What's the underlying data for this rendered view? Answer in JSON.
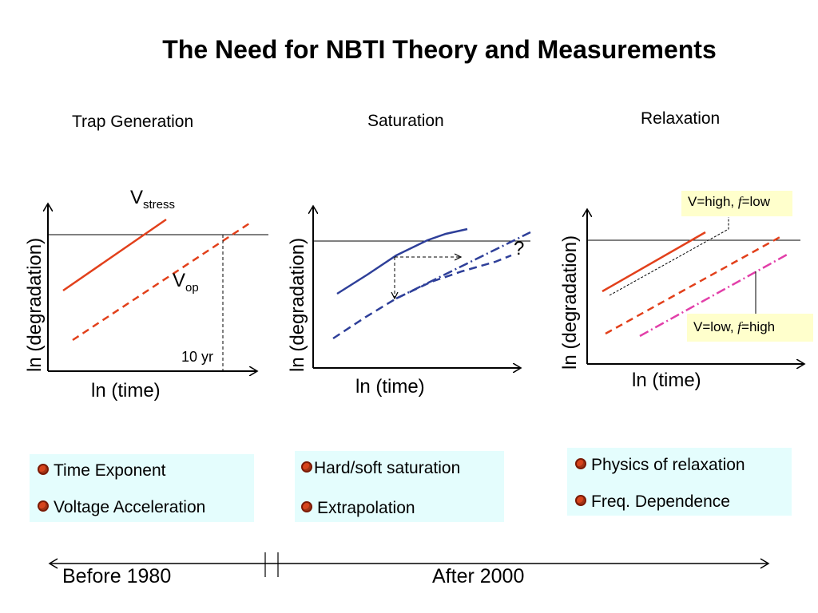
{
  "title": "The Need for NBTI Theory and Measurements",
  "panels": [
    {
      "title": "Trap Generation",
      "ylabel": "ln (degradation)",
      "xlabel": "ln (time)",
      "vstress_main": "V",
      "vstress_sub": "stress",
      "vop_main": "V",
      "vop_sub": "op",
      "marker": "10 yr",
      "bullets": [
        "Time Exponent",
        "Voltage Acceleration"
      ]
    },
    {
      "title": "Saturation",
      "ylabel": "ln (degradation)",
      "xlabel": "ln (time)",
      "question": "?",
      "bullets": [
        "Hard/soft saturation",
        "Extrapolation"
      ]
    },
    {
      "title": "Relaxation",
      "ylabel": "ln (degradation)",
      "xlabel": "ln (time)",
      "callout_top": {
        "pre": "V=high, ",
        "f": "f",
        "post": "=low"
      },
      "callout_bottom": {
        "pre": "V=low, ",
        "f": "f",
        "post": "=high"
      },
      "bullets": [
        "Physics of relaxation",
        "Freq. Dependence"
      ]
    }
  ],
  "timeline": {
    "left": "Before 1980",
    "right": "After 2000"
  },
  "colors": {
    "red": "#e2401b",
    "blue": "#2e3f99",
    "pink": "#e23fa9",
    "box_bg": "#e4fdfd",
    "callout_bg": "#ffffcc"
  }
}
